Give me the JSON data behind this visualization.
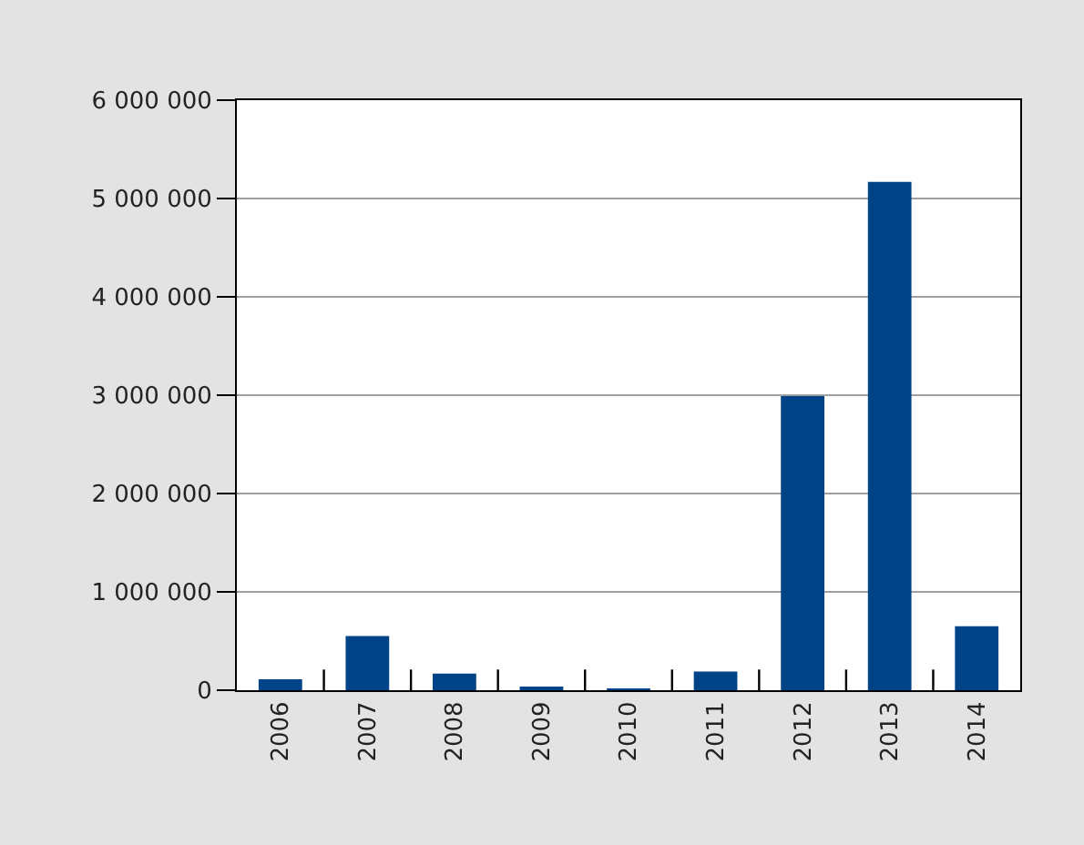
{
  "chart_data": {
    "type": "bar",
    "categories": [
      "2006",
      "2007",
      "2008",
      "2009",
      "2010",
      "2011",
      "2012",
      "2013",
      "2014"
    ],
    "values": [
      110000,
      550000,
      170000,
      20000,
      5000,
      190000,
      2990000,
      5170000,
      650000
    ],
    "color": "#004386",
    "ylim": [
      0,
      6000000
    ],
    "yticks": [
      {
        "value": 0,
        "label": "0"
      },
      {
        "value": 1000000,
        "label": "1 000 000"
      },
      {
        "value": 2000000,
        "label": "2 000 000"
      },
      {
        "value": 3000000,
        "label": "3 000 000"
      },
      {
        "value": 4000000,
        "label": "4 000 000"
      },
      {
        "value": 5000000,
        "label": "5 000 000"
      },
      {
        "value": 6000000,
        "label": "6 000 000"
      }
    ],
    "grid": "y"
  }
}
